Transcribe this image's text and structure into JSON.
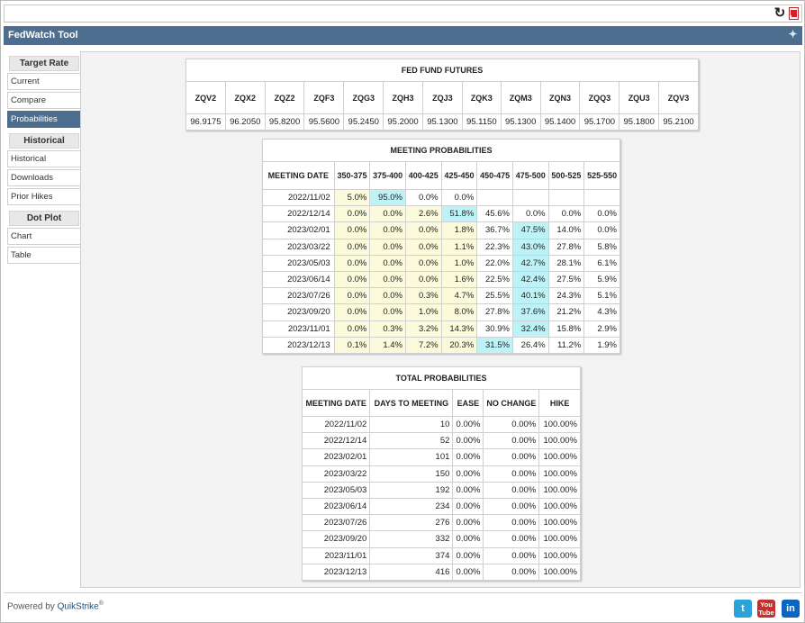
{
  "app_title": "FedWatch Tool",
  "sidebar": {
    "sections": [
      {
        "heading": "Target Rate",
        "items": [
          "Current",
          "Compare",
          "Probabilities"
        ]
      },
      {
        "heading": "Historical",
        "items": [
          "Historical",
          "Downloads",
          "Prior Hikes"
        ]
      },
      {
        "heading": "Dot Plot",
        "items": [
          "Chart",
          "Table"
        ]
      }
    ],
    "active_item": "Probabilities"
  },
  "futures": {
    "title": "FED FUND FUTURES",
    "headers": [
      "ZQV2",
      "ZQX2",
      "ZQZ2",
      "ZQF3",
      "ZQG3",
      "ZQH3",
      "ZQJ3",
      "ZQK3",
      "ZQM3",
      "ZQN3",
      "ZQQ3",
      "ZQU3",
      "ZQV3"
    ],
    "values": [
      "96.9175",
      "96.2050",
      "95.8200",
      "95.5600",
      "95.2450",
      "95.2000",
      "95.1300",
      "95.1150",
      "95.1300",
      "95.1400",
      "95.1700",
      "95.1800",
      "95.2100"
    ]
  },
  "meeting_probabilities": {
    "title": "MEETING PROBABILITIES",
    "headers": [
      "MEETING DATE",
      "350-375",
      "375-400",
      "400-425",
      "425-450",
      "450-475",
      "475-500",
      "500-525",
      "525-550"
    ],
    "rows": [
      {
        "date": "2022/11/02",
        "values": [
          "5.0%",
          "95.0%",
          "0.0%",
          "0.0%",
          "",
          "",
          "",
          ""
        ]
      },
      {
        "date": "2022/12/14",
        "values": [
          "0.0%",
          "0.0%",
          "2.6%",
          "51.8%",
          "45.6%",
          "0.0%",
          "0.0%",
          "0.0%"
        ]
      },
      {
        "date": "2023/02/01",
        "values": [
          "0.0%",
          "0.0%",
          "0.0%",
          "1.8%",
          "36.7%",
          "47.5%",
          "14.0%",
          "0.0%"
        ]
      },
      {
        "date": "2023/03/22",
        "values": [
          "0.0%",
          "0.0%",
          "0.0%",
          "1.1%",
          "22.3%",
          "43.0%",
          "27.8%",
          "5.8%"
        ]
      },
      {
        "date": "2023/05/03",
        "values": [
          "0.0%",
          "0.0%",
          "0.0%",
          "1.0%",
          "22.0%",
          "42.7%",
          "28.1%",
          "6.1%"
        ]
      },
      {
        "date": "2023/06/14",
        "values": [
          "0.0%",
          "0.0%",
          "0.0%",
          "1.6%",
          "22.5%",
          "42.4%",
          "27.5%",
          "5.9%"
        ]
      },
      {
        "date": "2023/07/26",
        "values": [
          "0.0%",
          "0.0%",
          "0.3%",
          "4.7%",
          "25.5%",
          "40.1%",
          "24.3%",
          "5.1%"
        ]
      },
      {
        "date": "2023/09/20",
        "values": [
          "0.0%",
          "0.0%",
          "1.0%",
          "8.0%",
          "27.8%",
          "37.6%",
          "21.2%",
          "4.3%"
        ]
      },
      {
        "date": "2023/11/01",
        "values": [
          "0.0%",
          "0.3%",
          "3.2%",
          "14.3%",
          "30.9%",
          "32.4%",
          "15.8%",
          "2.9%"
        ]
      },
      {
        "date": "2023/12/13",
        "values": [
          "0.1%",
          "1.4%",
          "7.2%",
          "20.3%",
          "31.5%",
          "26.4%",
          "11.2%",
          "1.9%"
        ]
      }
    ],
    "highlight": [
      [
        "y",
        "b",
        "",
        "",
        "",
        "",
        "",
        ""
      ],
      [
        "y",
        "y",
        "y",
        "b",
        "",
        "",
        "",
        ""
      ],
      [
        "y",
        "y",
        "y",
        "y",
        "",
        "b",
        "",
        ""
      ],
      [
        "y",
        "y",
        "y",
        "y",
        "",
        "b",
        "",
        ""
      ],
      [
        "y",
        "y",
        "y",
        "y",
        "",
        "b",
        "",
        ""
      ],
      [
        "y",
        "y",
        "y",
        "y",
        "",
        "b",
        "",
        ""
      ],
      [
        "y",
        "y",
        "y",
        "y",
        "",
        "b",
        "",
        ""
      ],
      [
        "y",
        "y",
        "y",
        "y",
        "",
        "b",
        "",
        ""
      ],
      [
        "y",
        "y",
        "y",
        "y",
        "",
        "b",
        "",
        ""
      ],
      [
        "y",
        "y",
        "y",
        "y",
        "b",
        "",
        "",
        ""
      ]
    ],
    "colors": {
      "below": "#fbfbdc",
      "max": "#bdf3f6"
    }
  },
  "total_probabilities": {
    "title": "TOTAL PROBABILITIES",
    "headers": [
      "MEETING DATE",
      "DAYS TO MEETING",
      "EASE",
      "NO CHANGE",
      "HIKE"
    ],
    "rows": [
      [
        "2022/11/02",
        "10",
        "0.00%",
        "0.00%",
        "100.00%"
      ],
      [
        "2022/12/14",
        "52",
        "0.00%",
        "0.00%",
        "100.00%"
      ],
      [
        "2023/02/01",
        "101",
        "0.00%",
        "0.00%",
        "100.00%"
      ],
      [
        "2023/03/22",
        "150",
        "0.00%",
        "0.00%",
        "100.00%"
      ],
      [
        "2023/05/03",
        "192",
        "0.00%",
        "0.00%",
        "100.00%"
      ],
      [
        "2023/06/14",
        "234",
        "0.00%",
        "0.00%",
        "100.00%"
      ],
      [
        "2023/07/26",
        "276",
        "0.00%",
        "0.00%",
        "100.00%"
      ],
      [
        "2023/09/20",
        "332",
        "0.00%",
        "0.00%",
        "100.00%"
      ],
      [
        "2023/11/01",
        "374",
        "0.00%",
        "0.00%",
        "100.00%"
      ],
      [
        "2023/12/13",
        "416",
        "0.00%",
        "0.00%",
        "100.00%"
      ]
    ]
  },
  "footer": {
    "powered_prefix": "Powered by ",
    "powered_brand": "QuikStrike",
    "registered": "®",
    "social": [
      {
        "icon": "twitter-icon",
        "glyph": "t"
      },
      {
        "icon": "youtube-icon",
        "glyph": "You Tube"
      },
      {
        "icon": "linkedin-icon",
        "glyph": "in"
      }
    ]
  },
  "colors": {
    "titlebar": "#4d6e8e",
    "active_item": "#4d6e8e"
  }
}
